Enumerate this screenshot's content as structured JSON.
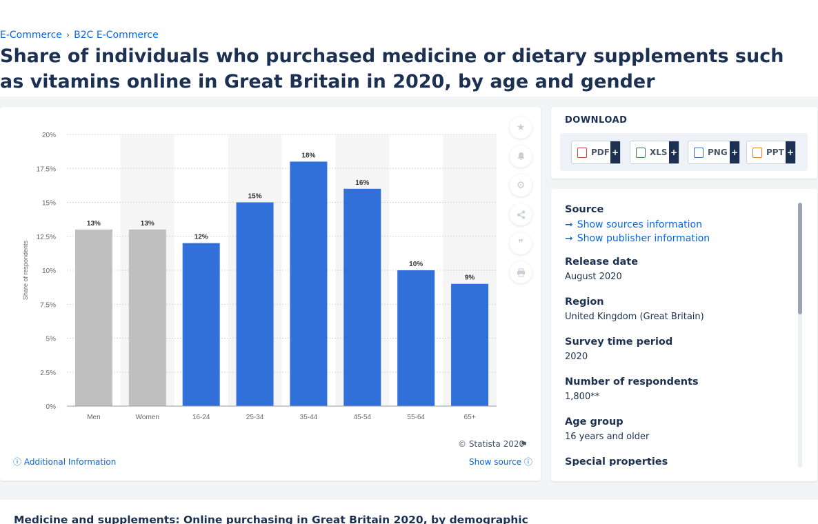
{
  "breadcrumb": {
    "items": [
      "E-Commerce",
      "B2C E-Commerce"
    ],
    "separator": "›"
  },
  "page_title": "Share of individuals who purchased medicine or dietary supplements such as vitamins online in Great Britain in 2020, by age and gender",
  "chart_data": {
    "type": "bar",
    "categories": [
      "Men",
      "Women",
      "16-24",
      "25-34",
      "35-44",
      "45-54",
      "55-64",
      "65+"
    ],
    "values": [
      13,
      13,
      12,
      15,
      18,
      16,
      10,
      9
    ],
    "data_labels": [
      "13%",
      "13%",
      "12%",
      "15%",
      "18%",
      "16%",
      "10%",
      "9%"
    ],
    "bar_colors": [
      "#bfbfbf",
      "#bfbfbf",
      "#3170d8",
      "#3170d8",
      "#3170d8",
      "#3170d8",
      "#3170d8",
      "#3170d8"
    ],
    "ylabel": "Share of respondents",
    "ylim": [
      0,
      20
    ],
    "yticks": [
      0,
      2.5,
      5,
      7.5,
      10,
      12.5,
      15,
      17.5,
      20
    ],
    "ytick_labels": [
      "0%",
      "2.5%",
      "5%",
      "7.5%",
      "10%",
      "12.5%",
      "15%",
      "17.5%",
      "20%"
    ],
    "grid": true
  },
  "chart_footer": {
    "copyright": "© Statista 2020",
    "additional_info": "Additional Information",
    "show_source": "Show source"
  },
  "tools": [
    "star-icon",
    "bell-icon",
    "gear-icon",
    "share-icon",
    "quote-icon",
    "print-icon"
  ],
  "download": {
    "title": "DOWNLOAD",
    "buttons": [
      "PDF",
      "XLS",
      "PNG",
      "PPT"
    ],
    "plus": "+"
  },
  "info": {
    "source_head": "Source",
    "show_sources": "Show sources information",
    "show_publisher": "Show publisher information",
    "release_head": "Release date",
    "release_val": "August 2020",
    "region_head": "Region",
    "region_val": "United Kingdom (Great Britain)",
    "survey_head": "Survey time period",
    "survey_val": "2020",
    "respondents_head": "Number of respondents",
    "respondents_val": "1,800**",
    "age_head": "Age group",
    "age_val": "16 years and older",
    "special_head": "Special properties"
  },
  "bottom_title": "Medicine and supplements: Online purchasing in Great Britain 2020, by demographic"
}
